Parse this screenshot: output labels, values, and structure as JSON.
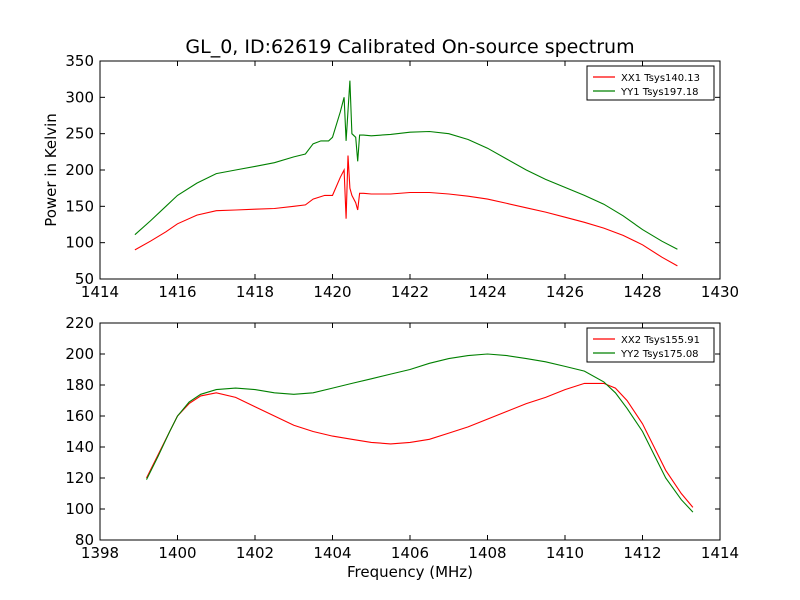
{
  "chart_data": [
    {
      "type": "line",
      "title": "GL_0, ID:62619 Calibrated On-source spectrum",
      "xlabel": "",
      "ylabel": "Power in Kelvin",
      "xlim": [
        1414,
        1430
      ],
      "ylim": [
        50,
        350
      ],
      "xticks": [
        "1414",
        "1416",
        "1418",
        "1420",
        "1422",
        "1424",
        "1426",
        "1428",
        "1430"
      ],
      "yticks": [
        "50",
        "100",
        "150",
        "200",
        "250",
        "300",
        "350"
      ],
      "grid": false,
      "legend": "top-right",
      "series": [
        {
          "name": "XX1 Tsys140.13",
          "color": "#ff0000",
          "x": [
            1414.9,
            1415.3,
            1415.7,
            1416.0,
            1416.5,
            1417.0,
            1417.5,
            1418.0,
            1418.5,
            1419.0,
            1419.3,
            1419.5,
            1419.8,
            1420.0,
            1420.2,
            1420.3,
            1420.35,
            1420.4,
            1420.45,
            1420.5,
            1420.6,
            1420.65,
            1420.7,
            1420.8,
            1421.0,
            1421.5,
            1422.0,
            1422.5,
            1423.0,
            1423.5,
            1424.0,
            1424.5,
            1425.0,
            1425.5,
            1426.0,
            1426.5,
            1427.0,
            1427.5,
            1428.0,
            1428.5,
            1428.9
          ],
          "y": [
            90,
            102,
            115,
            126,
            138,
            144,
            145,
            146,
            147,
            150,
            152,
            160,
            165,
            165,
            190,
            200,
            133,
            220,
            175,
            165,
            155,
            145,
            168,
            168,
            167,
            167,
            169,
            169,
            167,
            164,
            160,
            154,
            148,
            142,
            135,
            128,
            120,
            110,
            97,
            80,
            68
          ]
        },
        {
          "name": "YY1 Tsys197.18",
          "color": "#008000",
          "x": [
            1414.9,
            1415.3,
            1415.7,
            1416.0,
            1416.5,
            1417.0,
            1417.5,
            1418.0,
            1418.5,
            1419.0,
            1419.3,
            1419.5,
            1419.7,
            1419.9,
            1420.0,
            1420.2,
            1420.3,
            1420.35,
            1420.45,
            1420.5,
            1420.6,
            1420.65,
            1420.7,
            1420.8,
            1421.0,
            1421.5,
            1422.0,
            1422.5,
            1423.0,
            1423.5,
            1424.0,
            1424.5,
            1425.0,
            1425.5,
            1426.0,
            1426.5,
            1427.0,
            1427.5,
            1428.0,
            1428.5,
            1428.9
          ],
          "y": [
            111,
            130,
            150,
            165,
            182,
            195,
            200,
            205,
            210,
            218,
            222,
            236,
            240,
            240,
            245,
            280,
            300,
            240,
            323,
            250,
            245,
            212,
            248,
            248,
            247,
            249,
            252,
            253,
            250,
            242,
            230,
            215,
            200,
            187,
            176,
            165,
            153,
            137,
            118,
            102,
            91
          ]
        }
      ]
    },
    {
      "type": "line",
      "title": "",
      "xlabel": "Frequency (MHz)",
      "ylabel": "",
      "xlim": [
        1398,
        1414
      ],
      "ylim": [
        80,
        220
      ],
      "xticks": [
        "1398",
        "1400",
        "1402",
        "1404",
        "1406",
        "1408",
        "1410",
        "1412",
        "1414"
      ],
      "yticks": [
        "80",
        "100",
        "120",
        "140",
        "160",
        "180",
        "200",
        "220"
      ],
      "grid": false,
      "legend": "top-right",
      "series": [
        {
          "name": "XX2 Tsys155.91",
          "color": "#ff0000",
          "x": [
            1399.2,
            1399.5,
            1399.8,
            1400.0,
            1400.3,
            1400.6,
            1401.0,
            1401.5,
            1402.0,
            1402.5,
            1403.0,
            1403.5,
            1404.0,
            1404.5,
            1405.0,
            1405.5,
            1406.0,
            1406.5,
            1407.0,
            1407.5,
            1408.0,
            1408.5,
            1409.0,
            1409.5,
            1410.0,
            1410.5,
            1411.0,
            1411.3,
            1411.6,
            1412.0,
            1412.3,
            1412.6,
            1413.0,
            1413.3
          ],
          "y": [
            120,
            135,
            150,
            160,
            168,
            173,
            175,
            172,
            166,
            160,
            154,
            150,
            147,
            145,
            143,
            142,
            143,
            145,
            149,
            153,
            158,
            163,
            168,
            172,
            177,
            181,
            181,
            178,
            170,
            155,
            140,
            125,
            110,
            101
          ]
        },
        {
          "name": "YY2 Tsys175.08",
          "color": "#008000",
          "x": [
            1399.2,
            1399.5,
            1399.8,
            1400.0,
            1400.3,
            1400.6,
            1401.0,
            1401.5,
            1402.0,
            1402.5,
            1403.0,
            1403.5,
            1404.0,
            1404.5,
            1405.0,
            1405.5,
            1406.0,
            1406.5,
            1407.0,
            1407.5,
            1408.0,
            1408.5,
            1409.0,
            1409.5,
            1410.0,
            1410.5,
            1411.0,
            1411.3,
            1411.6,
            1412.0,
            1412.3,
            1412.6,
            1413.0,
            1413.3
          ],
          "y": [
            119,
            134,
            150,
            160,
            169,
            174,
            177,
            178,
            177,
            175,
            174,
            175,
            178,
            181,
            184,
            187,
            190,
            194,
            197,
            199,
            200,
            199,
            197,
            195,
            192,
            189,
            182,
            175,
            165,
            150,
            135,
            120,
            106,
            98
          ]
        }
      ]
    }
  ]
}
